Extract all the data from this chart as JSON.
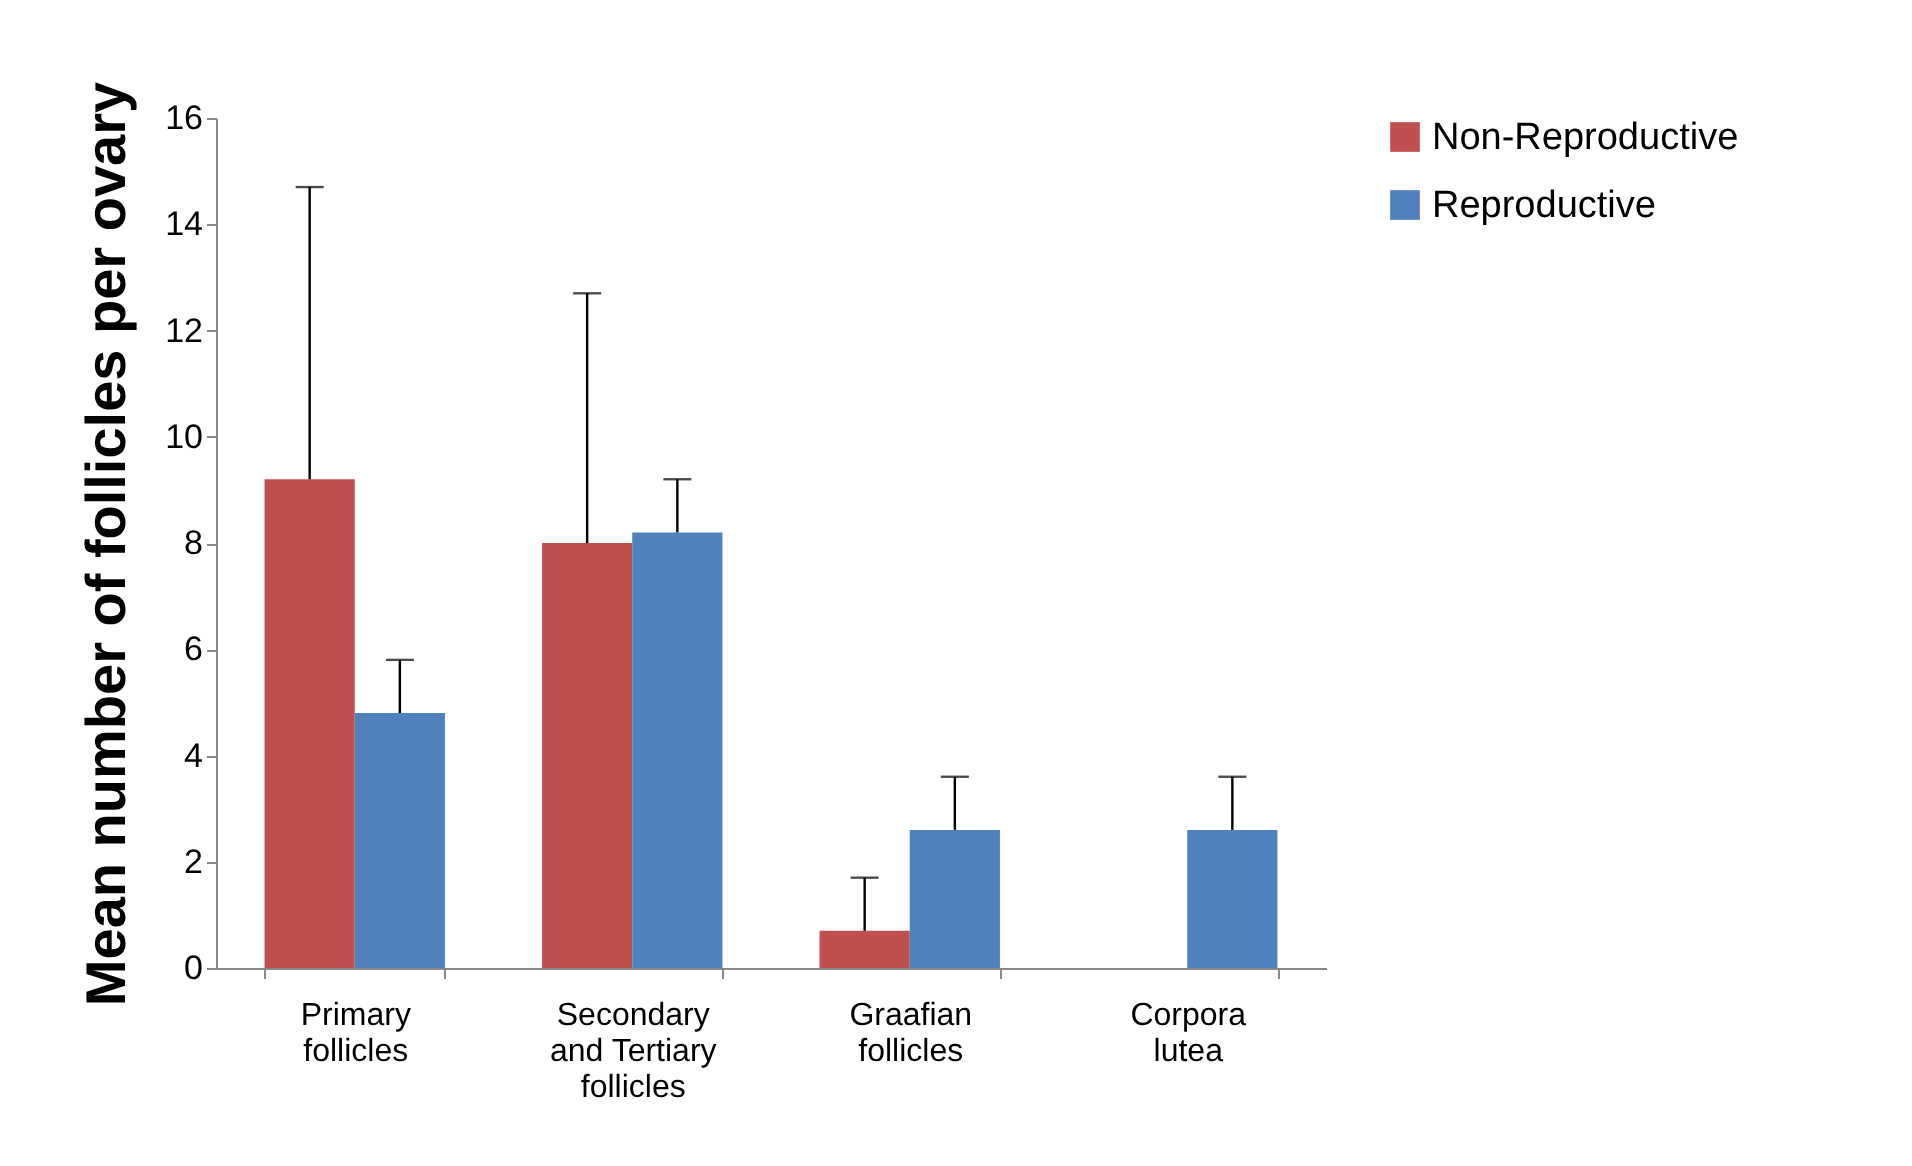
{
  "chart_data": {
    "type": "bar",
    "ylabel": "Mean number of follicles per ovary",
    "categories": [
      "Primary follicles",
      "Secondary and Tertiary follicles",
      "Graafian follicles",
      "Corpora lutea"
    ],
    "series": [
      {
        "name": "Non-Reproductive",
        "color": "#c0504d",
        "values": [
          9.2,
          8.0,
          0.7,
          0
        ],
        "errors": [
          [
            9.2,
            14.7
          ],
          [
            8.0,
            12.7
          ],
          [
            0.7,
            1.7
          ],
          null
        ]
      },
      {
        "name": "Reproductive",
        "color": "#4f81bd",
        "values": [
          4.8,
          8.2,
          2.6,
          2.6
        ],
        "errors": [
          [
            4.8,
            5.8
          ],
          [
            8.2,
            9.2
          ],
          [
            2.6,
            3.6
          ],
          [
            2.6,
            3.6
          ]
        ]
      }
    ],
    "ylim": [
      0,
      16
    ],
    "yticks": [
      0,
      2,
      4,
      6,
      8,
      10,
      12,
      14,
      16
    ],
    "grid": false,
    "legend": "right"
  }
}
